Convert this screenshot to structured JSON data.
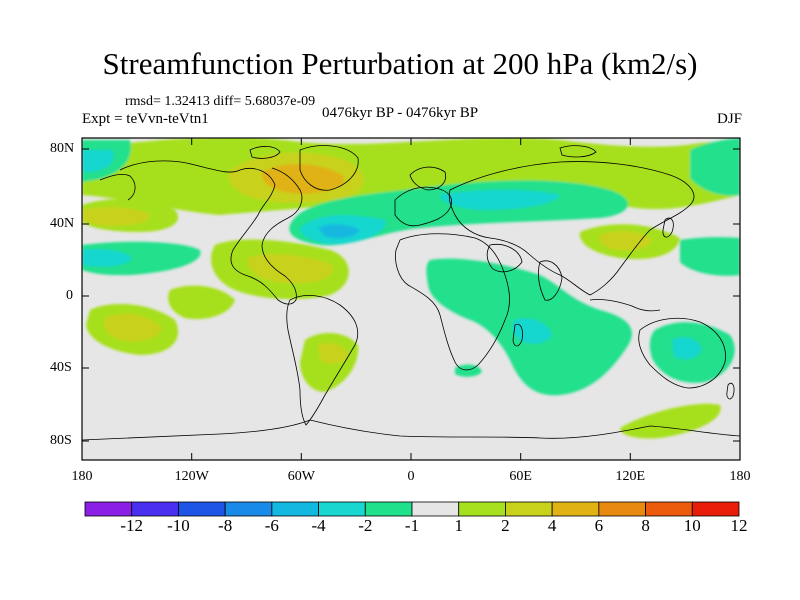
{
  "title": "Streamfunction Perturbation at 200 hPa (km2/s)",
  "stats": "rmsd= 1.32413  diff= 5.68037e-09",
  "experiment": "Expt = teVvn-teVtn1",
  "period": "0476kyr BP - 0476kyr BP",
  "season": "DJF",
  "axes": {
    "lat_labels": [
      "80N",
      "40N",
      "0",
      "40S",
      "80S"
    ],
    "lon_labels": [
      "180",
      "120W",
      "60W",
      "0",
      "60E",
      "120E",
      "180"
    ]
  },
  "colorbar": {
    "labels": [
      "-12",
      "-10",
      "-8",
      "-6",
      "-4",
      "-2",
      "-1",
      "1",
      "2",
      "4",
      "6",
      "8",
      "10",
      "12"
    ],
    "colors": [
      "#8c1fe6",
      "#4b2ff0",
      "#1e55e6",
      "#1a8ae8",
      "#12b8e0",
      "#18d6d0",
      "#20e08c",
      "#e6e6e6",
      "#a6e01e",
      "#c8d21a",
      "#e0b214",
      "#e88a10",
      "#ec5a0c",
      "#e81e0a"
    ]
  }
}
